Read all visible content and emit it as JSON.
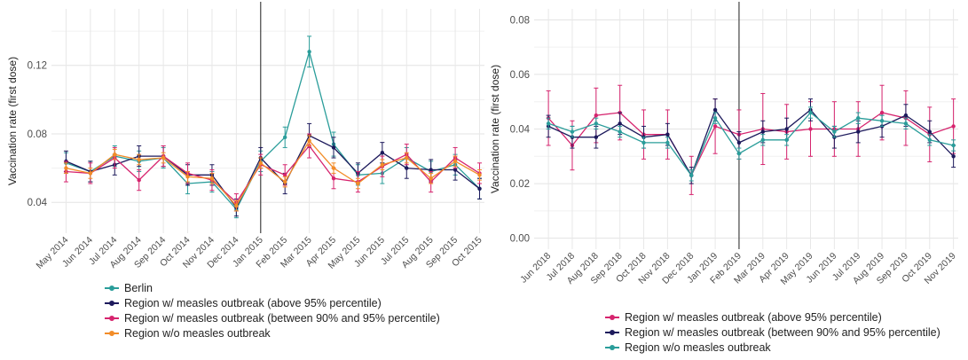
{
  "chart_data": [
    {
      "type": "line",
      "title": "",
      "xlabel": "",
      "ylabel": "Vaccination rate (first dose)",
      "ylim": [
        0.022,
        0.153
      ],
      "yticks": [
        0.04,
        0.08,
        0.12
      ],
      "yticklabels": [
        "0.04",
        "0.08",
        "0.12"
      ],
      "grid": true,
      "legend": "bottom",
      "vline_at": "Jan 2015",
      "categories": [
        "May 2014",
        "Jun 2014",
        "Jul 2014",
        "Aug 2014",
        "Sep 2014",
        "Oct 2014",
        "Nov 2014",
        "Dec 2014",
        "Jan 2015",
        "Feb 2015",
        "Mar 2015",
        "Apr 2015",
        "May 2015",
        "Jun 2015",
        "Jul 2015",
        "Aug 2015",
        "Sep 2015",
        "Oct 2015"
      ],
      "series": [
        {
          "name": "Berlin",
          "color": "#2a9d9a",
          "values": [
            0.063,
            0.058,
            0.067,
            0.064,
            0.066,
            0.051,
            0.052,
            0.036,
            0.064,
            0.078,
            0.128,
            0.074,
            0.056,
            0.057,
            0.066,
            0.058,
            0.062,
            0.048
          ],
          "err": [
            0.006,
            0.006,
            0.006,
            0.006,
            0.006,
            0.006,
            0.006,
            0.005,
            0.006,
            0.006,
            0.009,
            0.007,
            0.006,
            0.006,
            0.006,
            0.006,
            0.006,
            0.006
          ]
        },
        {
          "name": "Region w/ measles outbreak (above 95% percentile)",
          "color": "#1d1a5c",
          "values": [
            0.064,
            0.058,
            0.062,
            0.067,
            0.067,
            0.056,
            0.056,
            0.037,
            0.066,
            0.051,
            0.079,
            0.072,
            0.057,
            0.069,
            0.06,
            0.059,
            0.059,
            0.048
          ],
          "err": [
            0.006,
            0.006,
            0.006,
            0.006,
            0.006,
            0.006,
            0.006,
            0.005,
            0.006,
            0.006,
            0.007,
            0.006,
            0.006,
            0.006,
            0.006,
            0.006,
            0.006,
            0.006
          ]
        },
        {
          "name": "Region w/ measles outbreak (between 90% and 95% percentile)",
          "color": "#d6246e",
          "values": [
            0.058,
            0.057,
            0.066,
            0.053,
            0.067,
            0.057,
            0.053,
            0.04,
            0.062,
            0.056,
            0.073,
            0.054,
            0.052,
            0.061,
            0.068,
            0.052,
            0.066,
            0.057
          ],
          "err": [
            0.006,
            0.006,
            0.006,
            0.006,
            0.006,
            0.006,
            0.006,
            0.005,
            0.006,
            0.006,
            0.007,
            0.006,
            0.006,
            0.006,
            0.006,
            0.006,
            0.006,
            0.006
          ]
        },
        {
          "name": "Region w/o measles outbreak",
          "color": "#f28c28",
          "values": [
            0.06,
            0.057,
            0.068,
            0.065,
            0.066,
            0.055,
            0.054,
            0.038,
            0.063,
            0.052,
            0.076,
            0.06,
            0.051,
            0.062,
            0.066,
            0.054,
            0.064,
            0.056
          ],
          "err": [
            0.003,
            0.003,
            0.003,
            0.003,
            0.003,
            0.003,
            0.003,
            0.003,
            0.003,
            0.003,
            0.003,
            0.003,
            0.003,
            0.003,
            0.003,
            0.003,
            0.003,
            0.003
          ]
        }
      ]
    },
    {
      "type": "line",
      "title": "",
      "xlabel": "",
      "ylabel": "Vaccination rate (first dose)",
      "ylim": [
        -0.004,
        0.084
      ],
      "yticks": [
        0.0,
        0.02,
        0.04,
        0.06,
        0.08
      ],
      "yticklabels": [
        "0.00",
        "0.02",
        "0.04",
        "0.06",
        "0.08"
      ],
      "grid": true,
      "legend": "bottom",
      "vline_at": "Feb 2019",
      "categories": [
        "Jun 2018",
        "Jul 2018",
        "Aug 2018",
        "Sep 2018",
        "Oct 2018",
        "Nov 2018",
        "Dec 2018",
        "Jan 2019",
        "Feb 2019",
        "Mar 2019",
        "Apr 2019",
        "May 2019",
        "Jun 2019",
        "Jul 2019",
        "Aug 2019",
        "Sep 2019",
        "Oct 2019",
        "Nov 2019"
      ],
      "series": [
        {
          "name": "Region w/ measles outbreak (above 95% percentile)",
          "color": "#d6246e",
          "values": [
            0.044,
            0.034,
            0.045,
            0.046,
            0.038,
            0.038,
            0.023,
            0.041,
            0.038,
            0.04,
            0.039,
            0.04,
            0.04,
            0.04,
            0.046,
            0.044,
            0.038,
            0.041
          ],
          "err": [
            0.01,
            0.009,
            0.01,
            0.01,
            0.009,
            0.009,
            0.007,
            0.01,
            0.009,
            0.013,
            0.01,
            0.01,
            0.01,
            0.01,
            0.01,
            0.01,
            0.01,
            0.01
          ]
        },
        {
          "name": "Region w/ measles outbreak (between 90% and 95% percentile)",
          "color": "#1d1a5c",
          "values": [
            0.041,
            0.037,
            0.037,
            0.042,
            0.037,
            0.038,
            0.023,
            0.047,
            0.035,
            0.039,
            0.04,
            0.047,
            0.037,
            0.039,
            0.041,
            0.045,
            0.039,
            0.03
          ],
          "err": [
            0.004,
            0.004,
            0.004,
            0.004,
            0.004,
            0.004,
            0.003,
            0.004,
            0.004,
            0.004,
            0.004,
            0.004,
            0.004,
            0.004,
            0.004,
            0.004,
            0.004,
            0.004
          ]
        },
        {
          "name": "Region w/o measles outbreak",
          "color": "#2a9d9a",
          "values": [
            0.042,
            0.039,
            0.042,
            0.039,
            0.035,
            0.035,
            0.023,
            0.044,
            0.031,
            0.036,
            0.036,
            0.046,
            0.039,
            0.044,
            0.043,
            0.042,
            0.036,
            0.034
          ],
          "err": [
            0.002,
            0.002,
            0.002,
            0.002,
            0.002,
            0.002,
            0.002,
            0.002,
            0.002,
            0.002,
            0.002,
            0.002,
            0.002,
            0.002,
            0.002,
            0.002,
            0.002,
            0.002
          ]
        }
      ]
    }
  ]
}
